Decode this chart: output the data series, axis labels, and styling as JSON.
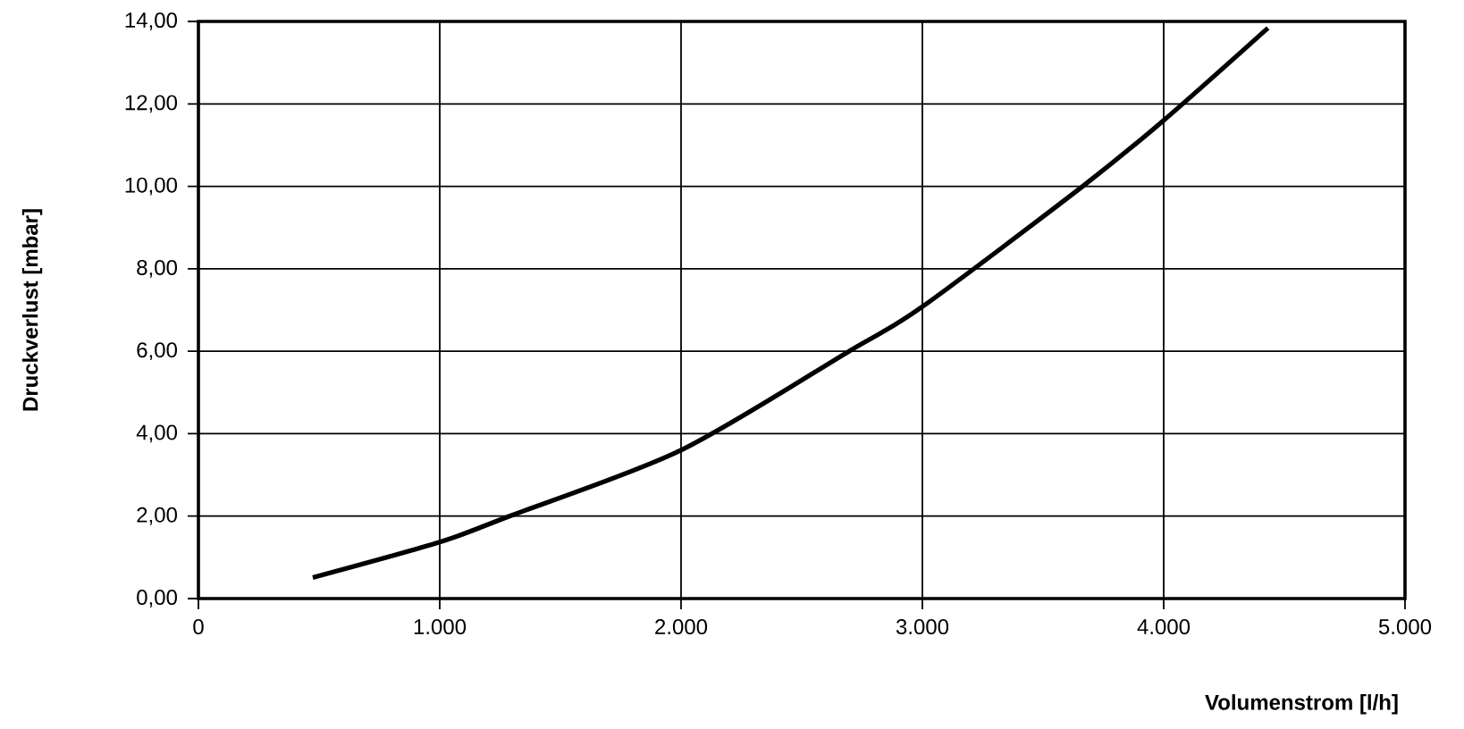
{
  "chart_data": {
    "type": "line",
    "xlabel": "Volumenstrom [l/h]",
    "ylabel": "Druckverlust [mbar]",
    "x": [
      474,
      1000,
      1289,
      2000,
      2696,
      2995,
      3664,
      4000,
      4432
    ],
    "series": [
      {
        "color": "#000000",
        "values": [
          0.51,
          1.37,
          2.0,
          3.6,
          6.0,
          7.06,
          10.0,
          11.6,
          13.84
        ]
      }
    ],
    "xlim": [
      0,
      5000
    ],
    "ylim": [
      0,
      14
    ],
    "xticks": [
      0,
      {
        "value": 1000,
        "label": "1.000"
      },
      {
        "value": 2000,
        "label": "2.000"
      },
      {
        "value": 3000,
        "label": "3.000"
      },
      {
        "value": 4000,
        "label": "4.000"
      },
      {
        "value": 5000,
        "label": "5.000"
      }
    ],
    "yticks": [
      {
        "value": 0,
        "label": "0,00"
      },
      {
        "value": 2,
        "label": "2,00"
      },
      {
        "value": 4,
        "label": "4,00"
      },
      {
        "value": 6,
        "label": "6,00"
      },
      {
        "value": 8,
        "label": "8,00"
      },
      {
        "value": 10,
        "label": "10,00"
      },
      {
        "value": 12,
        "label": "12,00"
      },
      {
        "value": 14,
        "label": "14,00"
      }
    ],
    "grid": true,
    "marker": "none",
    "line_style": "solid"
  }
}
